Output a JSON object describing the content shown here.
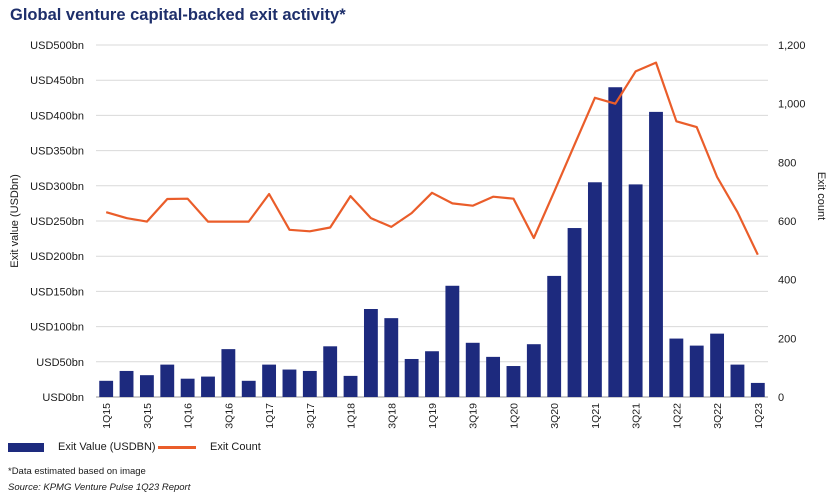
{
  "title": "Global venture capital-backed exit activity*",
  "chart_data": {
    "type": "bar",
    "categories": [
      "1Q15",
      "2Q15",
      "3Q15",
      "4Q15",
      "1Q16",
      "2Q16",
      "3Q16",
      "4Q16",
      "1Q17",
      "2Q17",
      "3Q17",
      "4Q17",
      "1Q18",
      "2Q18",
      "3Q18",
      "4Q18",
      "1Q19",
      "2Q19",
      "3Q19",
      "4Q19",
      "1Q20",
      "2Q20",
      "3Q20",
      "4Q20",
      "1Q21",
      "2Q21",
      "3Q21",
      "4Q21",
      "1Q22",
      "2Q22",
      "3Q22",
      "4Q22",
      "1Q23"
    ],
    "x_tick_labels": [
      "1Q15",
      "3Q15",
      "1Q16",
      "3Q16",
      "1Q17",
      "3Q17",
      "1Q18",
      "3Q18",
      "1Q19",
      "3Q19",
      "1Q20",
      "3Q20",
      "1Q21",
      "3Q21",
      "1Q22",
      "3Q22",
      "1Q23"
    ],
    "series": [
      {
        "name": "Exit Value (USDBN)",
        "type": "bar",
        "axis": "left",
        "color": "#1d2a7e",
        "values": [
          23,
          37,
          31,
          46,
          26,
          29,
          68,
          23,
          46,
          39,
          37,
          72,
          30,
          125,
          112,
          54,
          65,
          158,
          77,
          57,
          44,
          75,
          172,
          240,
          305,
          440,
          302,
          405,
          83,
          73,
          90,
          46,
          20
        ]
      },
      {
        "name": "Exit Count",
        "type": "line",
        "axis": "right",
        "color": "#ea5d2a",
        "values": [
          630,
          610,
          598,
          675,
          676,
          598,
          598,
          598,
          692,
          570,
          565,
          578,
          685,
          610,
          580,
          627,
          696,
          660,
          652,
          683,
          676,
          542,
          700,
          860,
          1020,
          1000,
          1110,
          1140,
          940,
          920,
          750,
          630,
          485
        ]
      }
    ],
    "y_left": {
      "label": "Exit value (USDbn)",
      "ylim": [
        0,
        500
      ],
      "ticks": [
        0,
        50,
        100,
        150,
        200,
        250,
        300,
        350,
        400,
        450,
        500
      ],
      "tick_labels": [
        "USD0bn",
        "USD50bn",
        "USD100bn",
        "USD150bn",
        "USD200bn",
        "USD250bn",
        "USD300bn",
        "USD350bn",
        "USD400bn",
        "USD450bn",
        "USD500bn"
      ]
    },
    "y_right": {
      "label": "Exit count",
      "ylim": [
        0,
        1200
      ],
      "ticks": [
        0,
        200,
        400,
        600,
        800,
        1000,
        1200
      ],
      "tick_labels": [
        "0",
        "200",
        "400",
        "600",
        "800",
        "1,000",
        "1,200"
      ]
    },
    "grid": true,
    "legend": "bottom-left"
  },
  "footnote": "*Data estimated based on image",
  "source": "Source: KPMG Venture Pulse 1Q23 Report"
}
